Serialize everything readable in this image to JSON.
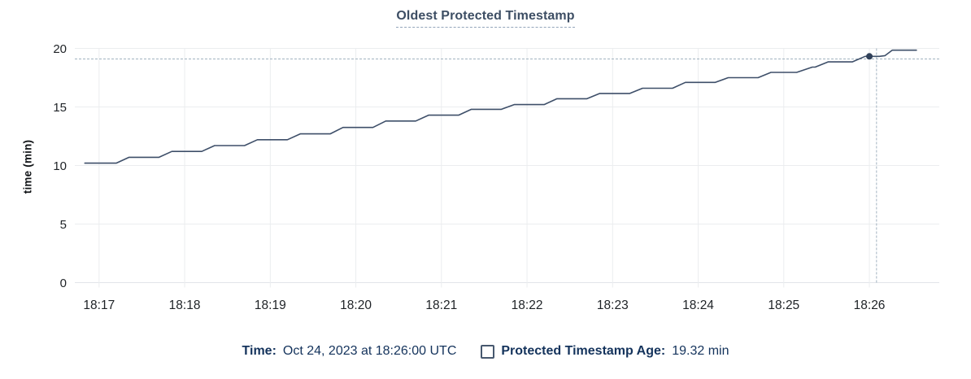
{
  "page": {
    "background": "#ffffff"
  },
  "colors": {
    "title": "#3d4e64",
    "legend_text": "#14335c",
    "grid": "#ebedef",
    "axis": "#e2e5e9",
    "tick_text": "#1e2226"
  },
  "chart_data": {
    "type": "line",
    "title": "Oldest Protected Timestamp",
    "ylabel": "time (min)",
    "xlabel": "",
    "ylim": [
      0,
      20
    ],
    "y_ticks": [
      0,
      5,
      10,
      15,
      20
    ],
    "x_unit": "seconds after 18:17:00 UTC",
    "x_domain_seconds": [
      -17,
      589
    ],
    "grid": true,
    "legend_position": "bottom",
    "x_ticks": [
      {
        "label": "18:17",
        "seconds": 0
      },
      {
        "label": "18:18",
        "seconds": 60
      },
      {
        "label": "18:19",
        "seconds": 120
      },
      {
        "label": "18:20",
        "seconds": 180
      },
      {
        "label": "18:21",
        "seconds": 240
      },
      {
        "label": "18:22",
        "seconds": 300
      },
      {
        "label": "18:23",
        "seconds": 360
      },
      {
        "label": "18:24",
        "seconds": 420
      },
      {
        "label": "18:25",
        "seconds": 480
      },
      {
        "label": "18:26",
        "seconds": 540
      }
    ],
    "series": [
      {
        "name": "Protected Timestamp Age",
        "color": "#3e4f69",
        "points": [
          [
            -10,
            10.2
          ],
          [
            12,
            10.2
          ],
          [
            21,
            10.7
          ],
          [
            42,
            10.7
          ],
          [
            51,
            11.2
          ],
          [
            72,
            11.2
          ],
          [
            81,
            11.7
          ],
          [
            102,
            11.7
          ],
          [
            111,
            12.2
          ],
          [
            132,
            12.2
          ],
          [
            141,
            12.7
          ],
          [
            162,
            12.7
          ],
          [
            171,
            13.25
          ],
          [
            192,
            13.25
          ],
          [
            201,
            13.8
          ],
          [
            222,
            13.8
          ],
          [
            231,
            14.3
          ],
          [
            252,
            14.3
          ],
          [
            261,
            14.8
          ],
          [
            282,
            14.8
          ],
          [
            291,
            15.2
          ],
          [
            312,
            15.2
          ],
          [
            321,
            15.7
          ],
          [
            342,
            15.7
          ],
          [
            351,
            16.15
          ],
          [
            372,
            16.15
          ],
          [
            381,
            16.6
          ],
          [
            402,
            16.6
          ],
          [
            411,
            17.1
          ],
          [
            432,
            17.1
          ],
          [
            441,
            17.5
          ],
          [
            462,
            17.5
          ],
          [
            471,
            17.95
          ],
          [
            489,
            17.95
          ],
          [
            500,
            18.4
          ],
          [
            502,
            18.4
          ],
          [
            511,
            18.85
          ],
          [
            528,
            18.85
          ],
          [
            537,
            19.32
          ],
          [
            547,
            19.32
          ],
          [
            551,
            19.38
          ],
          [
            556,
            19.85
          ],
          [
            573,
            19.85
          ]
        ]
      }
    ],
    "crosshair": {
      "vline_seconds": 545,
      "hline_value": 19.1,
      "point_seconds": 540,
      "point_value": 19.32,
      "color": "#a2b3c0",
      "point_color": "#2f4059"
    }
  },
  "tooltip": {
    "time_label": "Time:",
    "time_value": "Oct 24, 2023 at 18:26:00 UTC",
    "series_label": "Protected Timestamp Age:",
    "series_value": "19.32 min"
  }
}
